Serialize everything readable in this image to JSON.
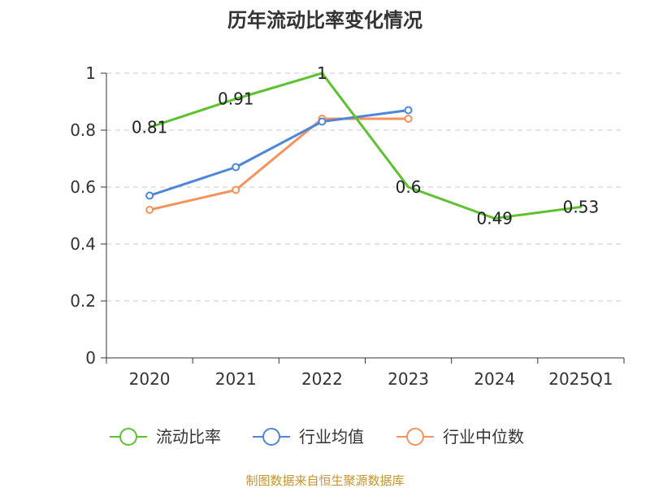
{
  "chart_data": {
    "type": "line",
    "title": "历年流动比率变化情况",
    "categories": [
      "2020",
      "2021",
      "2022",
      "2023",
      "2024",
      "2025Q1"
    ],
    "y_ticks": [
      "0",
      "0.2",
      "0.4",
      "0.6",
      "0.8",
      "1"
    ],
    "ylim": [
      0,
      1
    ],
    "grid": true,
    "legend_position": "bottom",
    "series": [
      {
        "name": "流动比率",
        "color": "#5cc22e",
        "values": [
          0.81,
          0.91,
          1.0,
          0.6,
          0.49,
          0.53
        ],
        "labels": [
          "0.81",
          "0.91",
          "1",
          "0.6",
          "0.49",
          "0.53"
        ],
        "markers": false
      },
      {
        "name": "行业均值",
        "color": "#4e86d9",
        "values": [
          0.57,
          0.67,
          0.83,
          0.87,
          null,
          null
        ],
        "markers": true
      },
      {
        "name": "行业中位数",
        "color": "#f7925a",
        "values": [
          0.52,
          0.59,
          0.84,
          0.84,
          null,
          null
        ],
        "markers": true
      }
    ]
  },
  "footer": {
    "source": "制图数据来自恒生聚源数据库"
  }
}
